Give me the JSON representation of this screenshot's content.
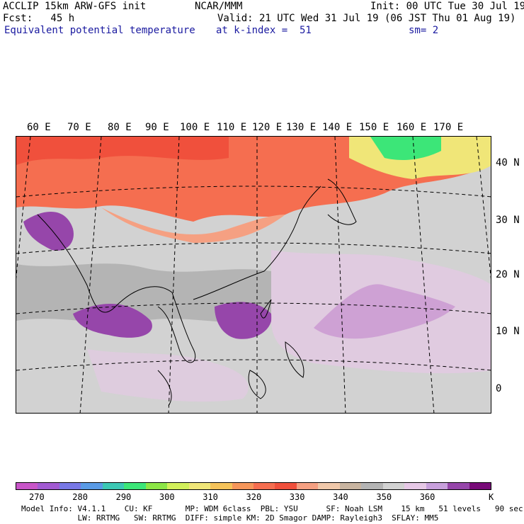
{
  "header": {
    "model": "ACCLIP 15km ARW-GFS init",
    "org": "NCAR/MMM",
    "init": "Init: 00 UTC Tue 30 Jul 19",
    "fcst": "Fcst:   45 h",
    "valid": "Valid: 21 UTC Wed 31 Jul 19 (06 JST Thu 01 Aug 19)",
    "field": "Equivalent potential temperature",
    "level": "at k-index =  51",
    "smooth": "sm= 2"
  },
  "longitudes": [
    "60 E",
    "70 E",
    "80 E",
    "90 E",
    "100 E",
    "110 E",
    "120 E",
    "130 E",
    "140 E",
    "150 E",
    "160 E",
    "170 E"
  ],
  "latitudes": [
    "40 N",
    "30 N",
    "20 N",
    "10 N",
    "0"
  ],
  "colorbar": {
    "unit": "K",
    "ticks": [
      "270",
      "280",
      "290",
      "300",
      "310",
      "320",
      "330",
      "340",
      "350",
      "360"
    ],
    "colors": [
      "#c855c8",
      "#a25ad2",
      "#7878e6",
      "#5a9be6",
      "#3cc8b4",
      "#3ce678",
      "#8ce646",
      "#d2f05a",
      "#f0e678",
      "#f5c35a",
      "#f5965a",
      "#f56e50",
      "#f0503c",
      "#f5a082",
      "#f0c8aa",
      "#c8b4a0",
      "#b4b4b4",
      "#d2d2d2",
      "#e6c8e6",
      "#c8a0dc",
      "#9646aa",
      "#780a78"
    ]
  },
  "footer": {
    "line1": "Model Info: V4.1.1    CU: KF       MP: WDM 6class  PBL: YSU      SF: Noah LSM    15 km   51 levels   90 sec",
    "line2": "            LW: RRTMG   SW: RRTMG  DIFF: simple KM: 2D Smagor DAMP: Rayleigh3  SFLAY: MM5"
  }
}
